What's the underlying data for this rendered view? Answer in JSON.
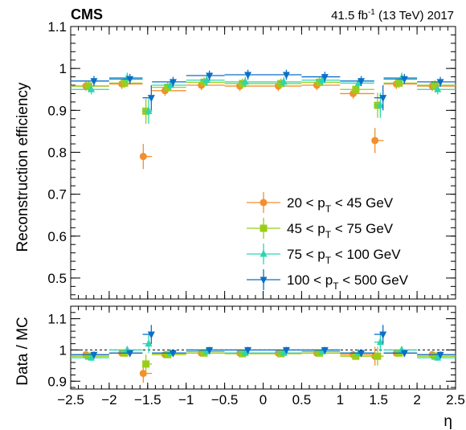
{
  "header": {
    "experiment": "CMS",
    "lumi_value": "41.5 fb",
    "lumi_exp": "-1",
    "lumi_rest": " (13 TeV) 2017"
  },
  "colors": {
    "s1": "#f28f2e",
    "s2": "#9acd1a",
    "s3": "#2bd6b0",
    "s4": "#0b6fc9"
  },
  "chart_data": [
    {
      "type": "scatter",
      "ylabel": "Reconstruction efficiency",
      "ylim": [
        0.45,
        1.1
      ],
      "yticks": [
        "0.5",
        "0.6",
        "0.7",
        "0.8",
        "0.9",
        "1",
        "1.1"
      ],
      "xlim": [
        -2.5,
        2.5
      ],
      "x_edges": [
        -2.5,
        -2.0,
        -1.566,
        -1.444,
        -1.0,
        -0.5,
        0.0,
        0.5,
        1.0,
        1.444,
        1.566,
        2.0,
        2.5
      ],
      "legend_position": "bottom-right",
      "series": [
        {
          "label_pre": "20 < p",
          "label_sub": "T",
          "label_post": " < 45 GeV",
          "marker": "circle",
          "values": [
            0.958,
            0.963,
            0.79,
            0.947,
            0.96,
            0.958,
            0.958,
            0.96,
            0.94,
            0.828,
            0.963,
            0.958
          ]
        },
        {
          "label_pre": "45 < p",
          "label_sub": "T",
          "label_post": " < 75 GeV",
          "marker": "square",
          "values": [
            0.958,
            0.965,
            0.898,
            0.955,
            0.967,
            0.964,
            0.964,
            0.967,
            0.95,
            0.912,
            0.965,
            0.96
          ]
        },
        {
          "label_pre": "75 < p",
          "label_sub": "T",
          "label_post": " < 100 GeV",
          "marker": "triangle-up",
          "values": [
            0.95,
            0.978,
            0.898,
            0.96,
            0.972,
            0.968,
            0.968,
            0.972,
            0.965,
            0.912,
            0.978,
            0.95
          ]
        },
        {
          "label_pre": "100 < p",
          "label_sub": "T",
          "label_post": " < 500 GeV",
          "marker": "triangle-down",
          "values": [
            0.97,
            0.975,
            0.93,
            0.968,
            0.983,
            0.985,
            0.985,
            0.98,
            0.97,
            0.93,
            0.975,
            0.968
          ]
        }
      ]
    },
    {
      "type": "scatter",
      "xlabel": "η",
      "ylabel": "Data / MC",
      "ylim": [
        0.875,
        1.14
      ],
      "yticks": [
        "0.9",
        "1",
        "1.1"
      ],
      "xlim": [
        -2.5,
        2.5
      ],
      "xticks": [
        "−2.5",
        "−2",
        "−1.5",
        "−1",
        "−0.5",
        "0",
        "0.5",
        "1",
        "1.5",
        "2",
        "2.5"
      ],
      "reference_line": 1.0,
      "series": [
        {
          "values": [
            0.985,
            0.99,
            0.925,
            0.985,
            0.99,
            0.99,
            0.99,
            0.99,
            0.985,
            0.98,
            0.99,
            0.985
          ]
        },
        {
          "values": [
            0.98,
            0.99,
            0.955,
            0.985,
            0.99,
            0.988,
            0.988,
            0.99,
            0.98,
            0.98,
            0.99,
            0.98
          ]
        },
        {
          "values": [
            0.975,
            1.0,
            1.02,
            0.99,
            0.995,
            0.99,
            0.99,
            0.995,
            0.99,
            1.025,
            1.0,
            0.975
          ]
        },
        {
          "values": [
            0.985,
            0.99,
            1.05,
            0.99,
            1.0,
            1.0,
            1.0,
            1.0,
            0.99,
            1.05,
            0.99,
            0.985
          ]
        }
      ]
    }
  ]
}
